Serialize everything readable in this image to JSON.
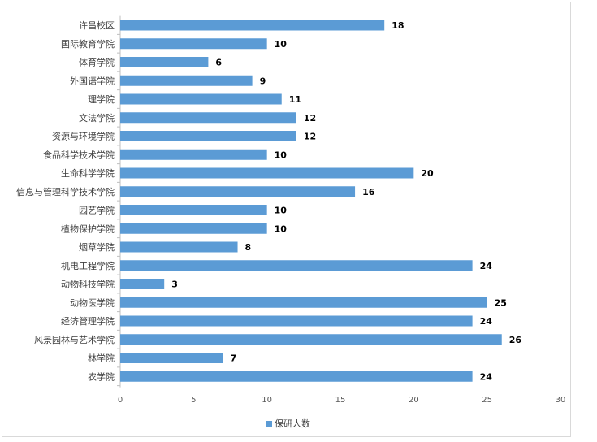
{
  "chart_data": {
    "type": "bar",
    "orientation": "horizontal",
    "categories": [
      "许昌校区",
      "国际教育学院",
      "体育学院",
      "外国语学院",
      "理学院",
      "文法学院",
      "资源与环境学院",
      "食品科学技术学院",
      "生命科学学院",
      "信息与管理科学技术学院",
      "园艺学院",
      "植物保护学院",
      "烟草学院",
      "机电工程学院",
      "动物科技学院",
      "动物医学院",
      "经济管理学院",
      "风景园林与艺术学院",
      "林学院",
      "农学院"
    ],
    "series": [
      {
        "name": "保研人数",
        "values": [
          18,
          10,
          6,
          9,
          11,
          12,
          12,
          10,
          20,
          16,
          10,
          10,
          8,
          24,
          3,
          25,
          24,
          26,
          7,
          24
        ]
      }
    ],
    "xlim": [
      0,
      30
    ],
    "xticks": [
      0,
      5,
      10,
      15,
      20,
      25,
      30
    ],
    "bar_color": "#5b9bd5",
    "grid": false,
    "legend_position": "bottom",
    "data_labels": true
  }
}
